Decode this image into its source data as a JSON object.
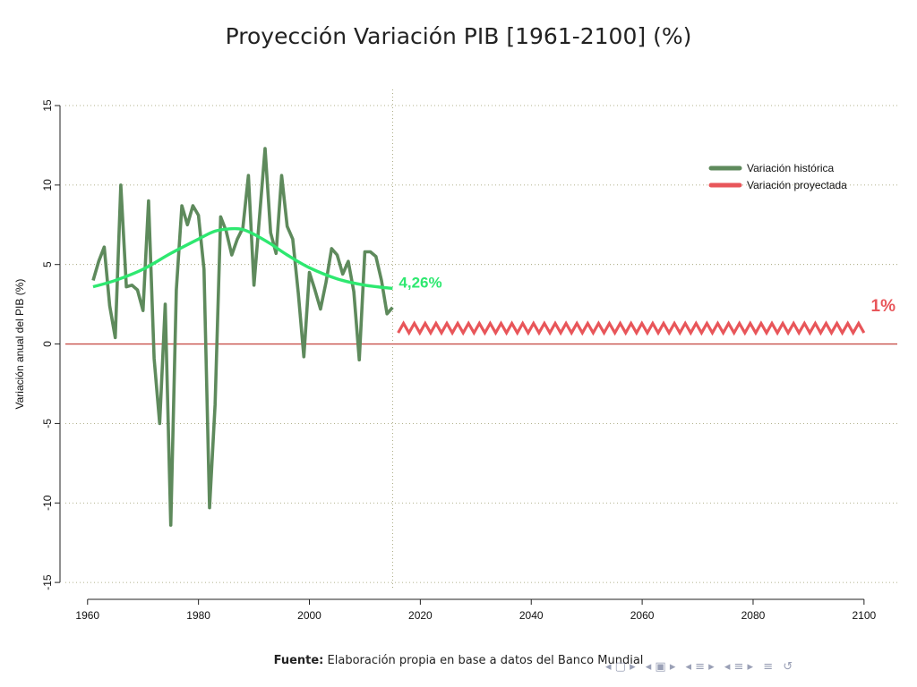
{
  "slide": {
    "title": "Proyección Variación PIB [1961-2100] (%)",
    "footer_label": "Fuente:",
    "footer_text": "Elaboración propia en base a datos del Banco Mundial"
  },
  "navigation": {
    "icons": [
      "nav-first-icon",
      "nav-frame-icon",
      "nav-section-icon",
      "nav-subsection-icon",
      "nav-menu-icon",
      "nav-back-icon"
    ],
    "glyphs": [
      "◂ ▢ ▸",
      "◂ ▣ ▸",
      "◂ ≡ ▸",
      "◂ ≡ ▸",
      "≡",
      "↺"
    ]
  },
  "chart_data": {
    "type": "line",
    "title": "Proyección Variación PIB [1961-2100] (%)",
    "xlabel": "",
    "ylabel": "Variación anual del PIB (%)",
    "xlim": [
      1956,
      2106
    ],
    "ylim": [
      -15.5,
      15
    ],
    "xticks": [
      1960,
      1980,
      2000,
      2020,
      2040,
      2060,
      2080,
      2100
    ],
    "yticks": [
      -15,
      -10,
      -5,
      0,
      5,
      10,
      15
    ],
    "grid": "dotted horizontal",
    "zero_line_color": "#c8504a",
    "vertical_marker_x": 2015,
    "legend_position": "top-right",
    "series": [
      {
        "name": "Variación histórica",
        "color": "#5e8a5c",
        "x": [
          1961,
          1962,
          1963,
          1964,
          1965,
          1966,
          1967,
          1968,
          1969,
          1970,
          1971,
          1972,
          1973,
          1974,
          1975,
          1976,
          1977,
          1978,
          1979,
          1980,
          1981,
          1982,
          1983,
          1984,
          1985,
          1986,
          1987,
          1988,
          1989,
          1990,
          1991,
          1992,
          1993,
          1994,
          1995,
          1996,
          1997,
          1998,
          1999,
          2000,
          2001,
          2002,
          2003,
          2004,
          2005,
          2006,
          2007,
          2008,
          2009,
          2010,
          2011,
          2012,
          2013,
          2014,
          2015
        ],
        "values": [
          4.0,
          5.2,
          6.1,
          2.4,
          0.4,
          10.0,
          3.6,
          3.7,
          3.4,
          2.1,
          9.0,
          -0.9,
          -5.0,
          2.5,
          -11.4,
          3.4,
          8.7,
          7.5,
          8.7,
          8.1,
          4.7,
          -10.3,
          -3.8,
          8.0,
          7.1,
          5.6,
          6.6,
          7.3,
          10.6,
          3.7,
          8.0,
          12.3,
          7.0,
          5.7,
          10.6,
          7.4,
          6.6,
          3.2,
          -0.8,
          4.5,
          3.4,
          2.2,
          3.9,
          6.0,
          5.6,
          4.4,
          5.2,
          3.3,
          -1.0,
          5.8,
          5.8,
          5.5,
          4.0,
          1.9,
          2.3
        ]
      },
      {
        "name": "",
        "color": "#2ee870",
        "label": "4,26%",
        "x": [
          1961,
          1965,
          1970,
          1975,
          1980,
          1983,
          1986,
          1988,
          1990,
          1993,
          1996,
          2000,
          2005,
          2010,
          2015
        ],
        "values": [
          3.6,
          4.0,
          4.7,
          5.7,
          6.6,
          7.1,
          7.25,
          7.2,
          6.9,
          6.3,
          5.6,
          4.8,
          4.1,
          3.7,
          3.5
        ]
      },
      {
        "name": "Variación proyectada",
        "color": "#e8565a",
        "label": "1%",
        "x_start": 2016,
        "x_end": 2100,
        "mean": 1.0,
        "amplitude": 0.3,
        "cycles": 43
      }
    ]
  }
}
